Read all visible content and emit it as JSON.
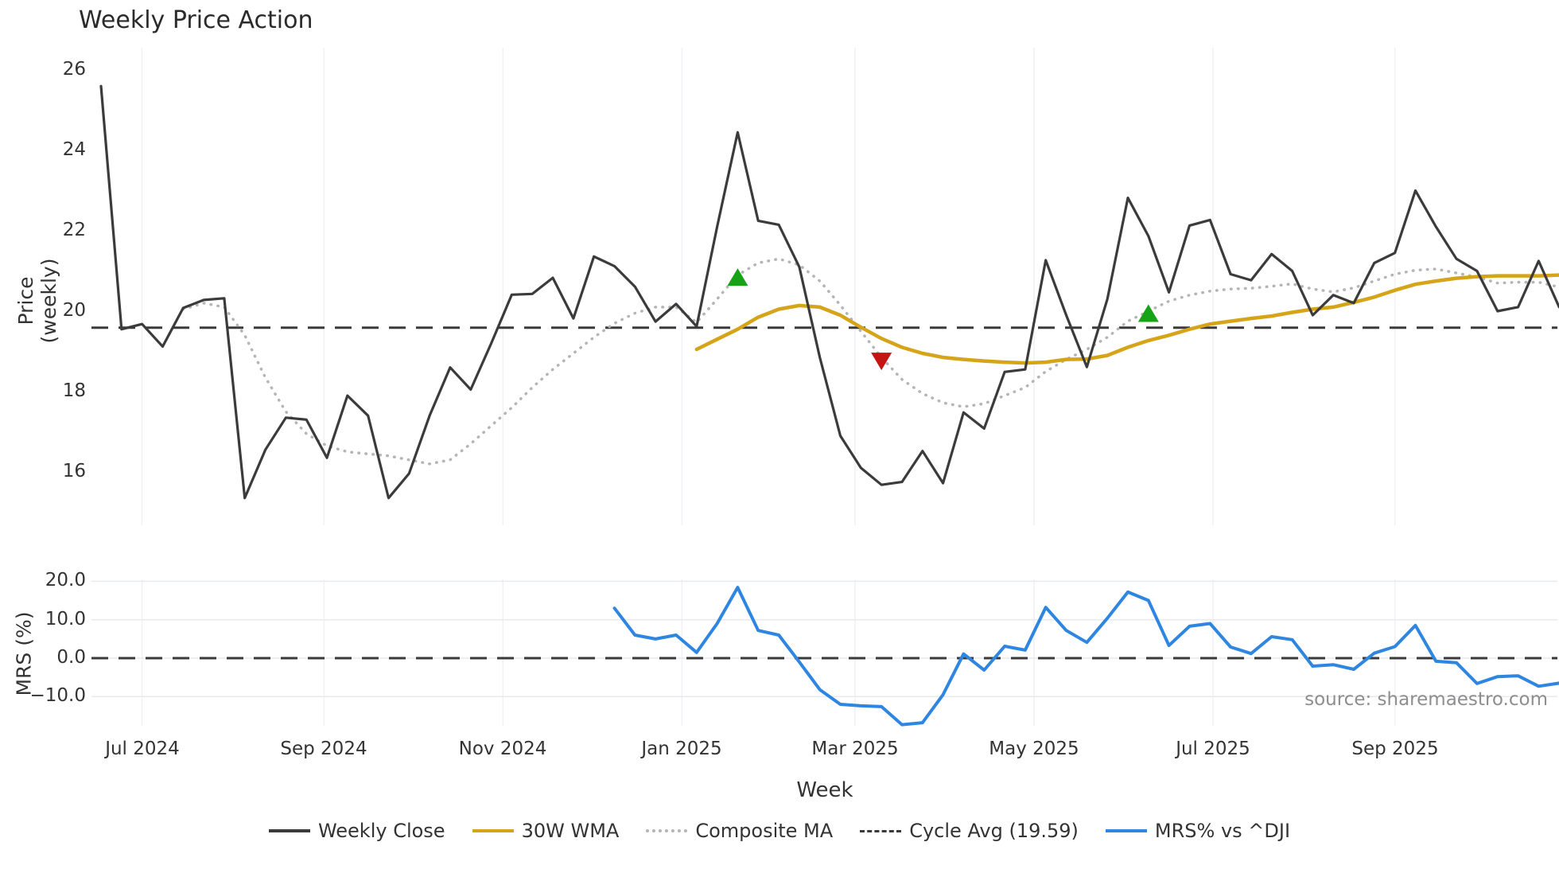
{
  "title": "Weekly Price Action",
  "source_text": "source: sharemaestro.com",
  "axes": {
    "price_axis": {
      "label": "Price (weekly)",
      "ticks": [
        "26",
        "24",
        "22",
        "20",
        "18",
        "16"
      ],
      "tick_values": [
        26,
        24,
        22,
        20,
        18,
        16
      ]
    },
    "mrs_axis": {
      "label": "MRS (%)",
      "ticks": [
        "20.0",
        "10.0",
        "0.0",
        "−10.0"
      ],
      "tick_values": [
        20,
        10,
        0,
        -10
      ]
    },
    "x_axis": {
      "label": "Week",
      "ticks": [
        {
          "label": "Jul 2024",
          "week_index": 2.0
        },
        {
          "label": "Sep 2024",
          "week_index": 10.86
        },
        {
          "label": "Nov 2024",
          "week_index": 19.57
        },
        {
          "label": "Jan 2025",
          "week_index": 28.29
        },
        {
          "label": "Mar 2025",
          "week_index": 36.71
        },
        {
          "label": "May 2025",
          "week_index": 45.43
        },
        {
          "label": "Jul 2025",
          "week_index": 54.14
        },
        {
          "label": "Sep 2025",
          "week_index": 63.0
        }
      ]
    }
  },
  "legend": [
    {
      "label": "Weekly Close",
      "style": "solid",
      "color": "#3b3b3b"
    },
    {
      "label": "30W WMA",
      "style": "solid",
      "color": "#d6a419"
    },
    {
      "label": "Composite MA",
      "style": "dotted",
      "color": "#b5b5b5"
    },
    {
      "label": "Cycle Avg (19.59)",
      "style": "dashed",
      "color": "#3a3a3a"
    },
    {
      "label": "MRS% vs ^DJI",
      "style": "solid",
      "color": "#2e86e0"
    }
  ],
  "colors": {
    "weekly_close": "#3b3b3b",
    "wma30": "#d6a419",
    "composite_ma": "#b5b5b5",
    "cycle_avg": "#3a3a3a",
    "mrs": "#2e86e0",
    "buy_marker": "#16a316",
    "sell_marker": "#c41414",
    "grid_vertical": "#f1f1f6",
    "grid_horizontal": "#e8eaf1"
  },
  "chart_data": [
    {
      "type": "line",
      "panel": "price",
      "title": "Weekly Price Action",
      "xlabel": "Week",
      "ylabel": "Price (weekly)",
      "x_start_week": "2024-06-17",
      "x_interval": "1 week",
      "ylim": [
        14.7,
        26.55
      ],
      "grid": "vertical-faint",
      "cycle_avg_value": 19.59,
      "series": [
        {
          "name": "Weekly Close",
          "start_index": 0,
          "values": [
            25.6,
            19.55,
            19.68,
            19.12,
            20.08,
            20.28,
            20.32,
            15.35,
            16.55,
            17.35,
            17.3,
            16.35,
            17.9,
            17.4,
            15.35,
            15.96,
            17.4,
            18.6,
            18.05,
            19.2,
            20.41,
            20.43,
            20.83,
            19.82,
            21.36,
            21.12,
            20.61,
            19.74,
            20.18,
            19.62,
            22.1,
            24.45,
            22.25,
            22.15,
            21.1,
            18.85,
            16.9,
            16.1,
            15.68,
            15.75,
            16.52,
            15.72,
            17.48,
            17.08,
            18.49,
            18.55,
            21.27,
            19.9,
            18.61,
            20.3,
            22.82,
            21.87,
            20.47,
            22.13,
            22.27,
            20.92,
            20.77,
            21.42,
            21.0,
            19.9,
            20.4,
            20.2,
            21.2,
            21.45,
            23.0,
            22.1,
            21.3,
            21.0,
            20.0,
            20.1,
            21.25,
            20.1
          ]
        },
        {
          "name": "Composite MA",
          "start_index": 4,
          "values": [
            20.05,
            20.2,
            20.1,
            19.4,
            18.35,
            17.5,
            16.95,
            16.65,
            16.5,
            16.45,
            16.4,
            16.3,
            16.2,
            16.3,
            16.7,
            17.15,
            17.6,
            18.1,
            18.55,
            18.95,
            19.35,
            19.7,
            19.95,
            20.1,
            20.1,
            19.72,
            20.3,
            20.9,
            21.2,
            21.3,
            21.15,
            20.75,
            20.15,
            19.5,
            18.85,
            18.3,
            17.95,
            17.72,
            17.62,
            17.7,
            17.9,
            18.1,
            18.5,
            18.8,
            19.05,
            19.35,
            19.75,
            20.0,
            20.25,
            20.4,
            20.5,
            20.55,
            20.57,
            20.62,
            20.68,
            20.55,
            20.48,
            20.58,
            20.75,
            20.92,
            21.02,
            21.05,
            20.95,
            20.85,
            20.7,
            20.72,
            20.72,
            20.6
          ]
        },
        {
          "name": "30W WMA",
          "start_index": 29,
          "values": [
            19.05,
            19.3,
            19.55,
            19.85,
            20.05,
            20.14,
            20.1,
            19.9,
            19.6,
            19.32,
            19.1,
            18.95,
            18.85,
            18.8,
            18.76,
            18.73,
            18.71,
            18.73,
            18.8,
            18.81,
            18.9,
            19.1,
            19.27,
            19.4,
            19.55,
            19.68,
            19.75,
            19.82,
            19.88,
            19.97,
            20.05,
            20.1,
            20.22,
            20.35,
            20.52,
            20.67,
            20.75,
            20.82,
            20.86,
            20.88,
            20.88,
            20.88,
            20.9
          ]
        }
      ],
      "markers": [
        {
          "type": "triangle-up",
          "color": "#16a316",
          "week_index": 31,
          "value": 20.85
        },
        {
          "type": "triangle-down",
          "color": "#c41414",
          "week_index": 38,
          "value": 18.75
        },
        {
          "type": "triangle-up",
          "color": "#16a316",
          "week_index": 51,
          "value": 19.95
        }
      ]
    },
    {
      "type": "line",
      "panel": "mrs",
      "ylabel": "MRS (%)",
      "ylim": [
        -17.6,
        20.4
      ],
      "zero_line": 0.0,
      "grid": "horizontal",
      "series": [
        {
          "name": "MRS% vs ^DJI",
          "start_index": 25,
          "values": [
            13.0,
            6.0,
            5.0,
            6.0,
            1.5,
            9.0,
            18.4,
            7.2,
            6.0,
            -1.0,
            -8.2,
            -12.0,
            -12.4,
            -12.6,
            -17.3,
            -16.8,
            -9.5,
            1.1,
            -3.1,
            3.1,
            2.1,
            13.2,
            7.2,
            4.1,
            10.4,
            17.2,
            15.0,
            3.3,
            8.3,
            9.0,
            2.9,
            1.2,
            5.6,
            4.8,
            -2.1,
            -1.7,
            -2.9,
            1.3,
            3.0,
            8.5,
            -0.8,
            -1.2,
            -6.6,
            -4.8,
            -4.6,
            -7.3,
            -6.5
          ]
        }
      ]
    }
  ]
}
